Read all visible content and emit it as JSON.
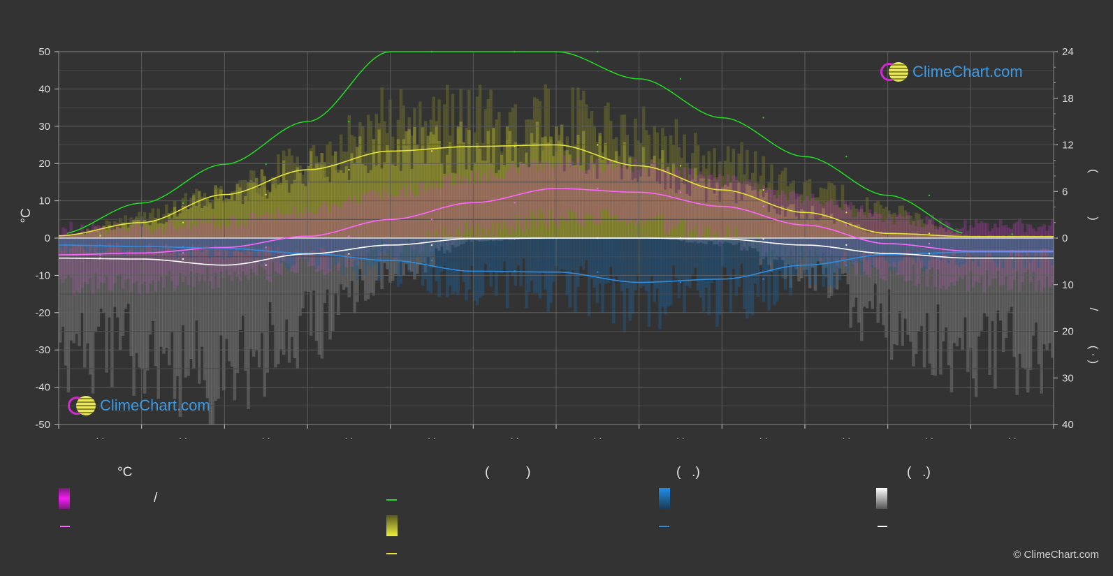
{
  "chart_data": {
    "type": "area",
    "left_axis": {
      "label": "°C",
      "ticks": [
        "50",
        "40",
        "30",
        "20",
        "10",
        "0",
        "-10",
        "-20",
        "-30",
        "-40",
        "-50"
      ],
      "range": [
        -50,
        50
      ]
    },
    "right_axis_top": {
      "label": ")",
      "ticks": [
        "24",
        "18",
        "12",
        "6",
        "0"
      ],
      "range": [
        0,
        24
      ]
    },
    "right_axis_bottom": {
      "label": "/",
      "ticks": [
        "0",
        "10",
        "20",
        "30",
        "40"
      ],
      "range": [
        0,
        40
      ]
    },
    "right_axis_marks": [
      "(",
      "/",
      "( · )"
    ],
    "month_ticks": [
      "· ·",
      "· ·",
      "· ·",
      "· ·",
      "· ·",
      "· ·",
      "· ·",
      "· ·",
      "· ·",
      "· ·",
      "· ·",
      "· ·"
    ],
    "months": [
      1,
      2,
      3,
      4,
      5,
      6,
      7,
      8,
      9,
      10,
      11,
      12
    ],
    "series": [
      {
        "key": "daylight",
        "color": "#22dd22",
        "values": [
          0.5,
          4.5,
          9.5,
          15.0,
          24.0,
          24.0,
          24.0,
          20.5,
          15.5,
          10.5,
          5.5,
          0.5
        ]
      },
      {
        "key": "sunshine",
        "color": "#e6e63a",
        "values": [
          0.3,
          2.0,
          5.6,
          8.8,
          11.2,
          11.8,
          12.0,
          9.3,
          6.2,
          3.3,
          0.6,
          0.2
        ]
      },
      {
        "key": "temp_mean",
        "color": "#ff66ff",
        "values": [
          -4.5,
          -4.0,
          -2.5,
          0.5,
          5.0,
          9.5,
          13.3,
          12.3,
          8.5,
          3.5,
          -1.5,
          -3.5
        ]
      },
      {
        "key": "precip",
        "color": "#2f8de0",
        "values": [
          1.5,
          1.8,
          2.2,
          3.3,
          4.8,
          7.1,
          7.3,
          9.5,
          8.8,
          5.8,
          3.5,
          3.0
        ]
      },
      {
        "key": "snow",
        "color": "#ffffff",
        "values": [
          4.3,
          4.5,
          5.8,
          3.4,
          1.5,
          0.1,
          0.0,
          0.0,
          0.2,
          1.5,
          3.3,
          4.3
        ]
      }
    ],
    "grid": true
  },
  "legend": {
    "col1": {
      "heading": "°C",
      "row1_label": "/"
    },
    "col2": {
      "heading": "(          )"
    },
    "col3": {
      "heading": "(   .)"
    },
    "col4": {
      "heading": "(   .)"
    }
  },
  "watermark": {
    "text": "ClimeChart.com"
  },
  "copyright": "© ClimeChart.com",
  "colors": {
    "background": "#333333",
    "grid": "#5a5a5a",
    "magenta": "#e41ee4",
    "yellow": "#e6e63a",
    "blue": "#1f8de8",
    "white": "#ffffff",
    "green": "#22dd22"
  }
}
